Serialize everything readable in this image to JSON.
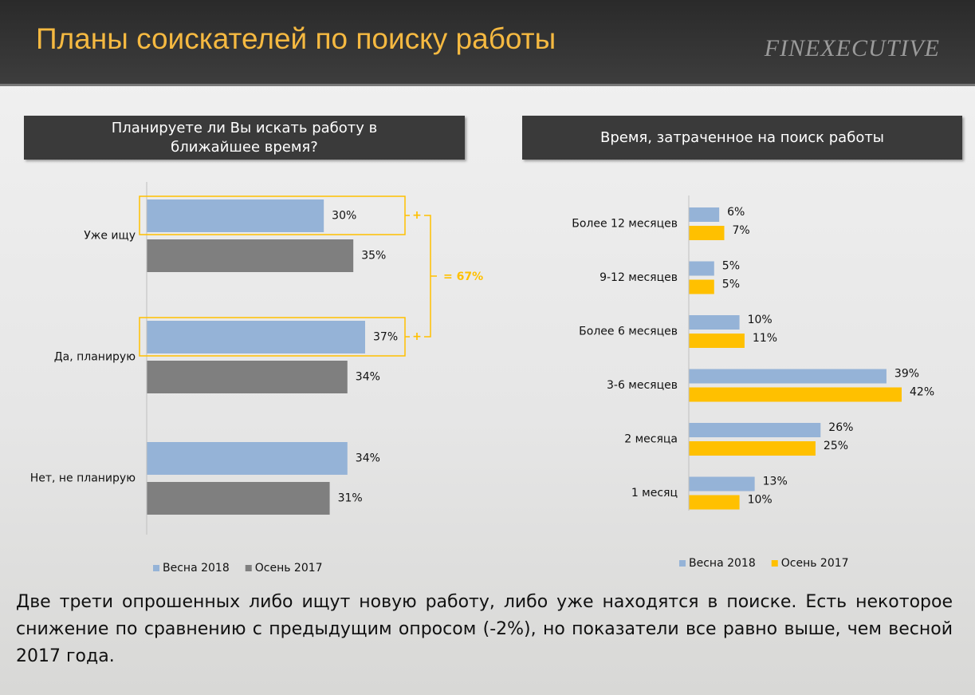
{
  "header": {
    "title": "Планы соискателей по поиску работы",
    "logo": "FINEXECUTIVE"
  },
  "chart_data": [
    {
      "type": "bar",
      "orientation": "horizontal",
      "title": "Планируете ли Вы искать работу в ближайшее время?",
      "categories": [
        "Уже ищу",
        "Да, планирую",
        "Нет, не планирую"
      ],
      "series": [
        {
          "name": "Весна 2018",
          "color": "#95b3d7",
          "values": [
            30,
            37,
            34
          ],
          "value_labels": [
            "30%",
            "37%",
            "34%"
          ]
        },
        {
          "name": "Осень 2017",
          "color": "#7f7f7f",
          "values": [
            35,
            34,
            31
          ],
          "value_labels": [
            "35%",
            "34%",
            "31%"
          ]
        }
      ],
      "annotations": [
        "+",
        "+",
        "= 67%"
      ],
      "legend": "bottom"
    },
    {
      "type": "bar",
      "orientation": "horizontal",
      "title": "Время, затраченное на поиск работы",
      "categories": [
        "Более 12 месяцев",
        "9-12 месяцев",
        "Более 6 месяцев",
        "3-6 месяцев",
        "2 месяца",
        "1 месяц"
      ],
      "series": [
        {
          "name": "Весна 2018",
          "color": "#95b3d7",
          "values": [
            6,
            5,
            10,
            39,
            26,
            13
          ],
          "value_labels": [
            "6%",
            "5%",
            "10%",
            "39%",
            "26%",
            "13%"
          ]
        },
        {
          "name": "Осень 2017",
          "color": "#ffc000",
          "values": [
            7,
            5,
            11,
            42,
            25,
            10
          ],
          "value_labels": [
            "7%",
            "5%",
            "11%",
            "42%",
            "25%",
            "10%"
          ]
        }
      ],
      "legend": "bottom"
    }
  ],
  "footer_text": "Две трети опрошенных либо ищут новую работу, либо уже находятся в поиске. Есть некоторое снижение по сравнению с предыдущим опросом (-2%), но показатели все равно выше, чем весной 2017 года."
}
